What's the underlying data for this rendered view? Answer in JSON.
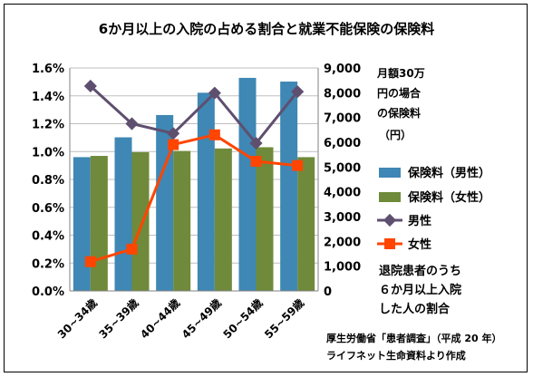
{
  "chart_data": {
    "type": "bar",
    "title": "6か月以上の入院の占める割合と就業不能保険の保険料",
    "categories": [
      "30~34歳",
      "35~39歳",
      "40~44歳",
      "45~49歳",
      "50~54歳",
      "55~59歳"
    ],
    "y_left": {
      "ticks": [
        "0.0%",
        "0.2%",
        "0.4%",
        "0.6%",
        "0.8%",
        "1.0%",
        "1.2%",
        "1.4%",
        "1.6%"
      ],
      "ylim": [
        0,
        1.6
      ]
    },
    "y_right": {
      "ticks": [
        "0",
        "1,000",
        "2,000",
        "3,000",
        "4,000",
        "5,000",
        "6,000",
        "7,000",
        "8,000",
        "9,000"
      ],
      "ylim": [
        0,
        9000
      ]
    },
    "series": [
      {
        "name": "保険料（男性）",
        "type": "bar",
        "axis": "right",
        "color": "#3f87b4",
        "values": [
          5400,
          6200,
          7100,
          8000,
          8600,
          8450
        ]
      },
      {
        "name": "保険料（女性）",
        "type": "bar",
        "axis": "right",
        "color": "#6f8a3a",
        "values": [
          5450,
          5600,
          5650,
          5750,
          5800,
          5400
        ]
      },
      {
        "name": "男性",
        "type": "line",
        "axis": "left",
        "color": "#5f4f6f",
        "values": [
          1.47,
          1.2,
          1.13,
          1.42,
          1.06,
          1.43
        ]
      },
      {
        "name": "女性",
        "type": "line",
        "axis": "left",
        "color": "#ff4500",
        "values": [
          0.21,
          0.3,
          1.05,
          1.12,
          0.93,
          0.9
        ]
      }
    ],
    "unit_note": [
      "月額30万",
      "円の場合",
      "の保険料",
      "（円）"
    ],
    "annotation": [
      "退院患者のうち",
      "６か月以上入院",
      "した人の割合"
    ],
    "source": [
      "厚生労働省「患者調査」（平成 20 年）",
      "ライフネット生命資料より作成"
    ]
  }
}
